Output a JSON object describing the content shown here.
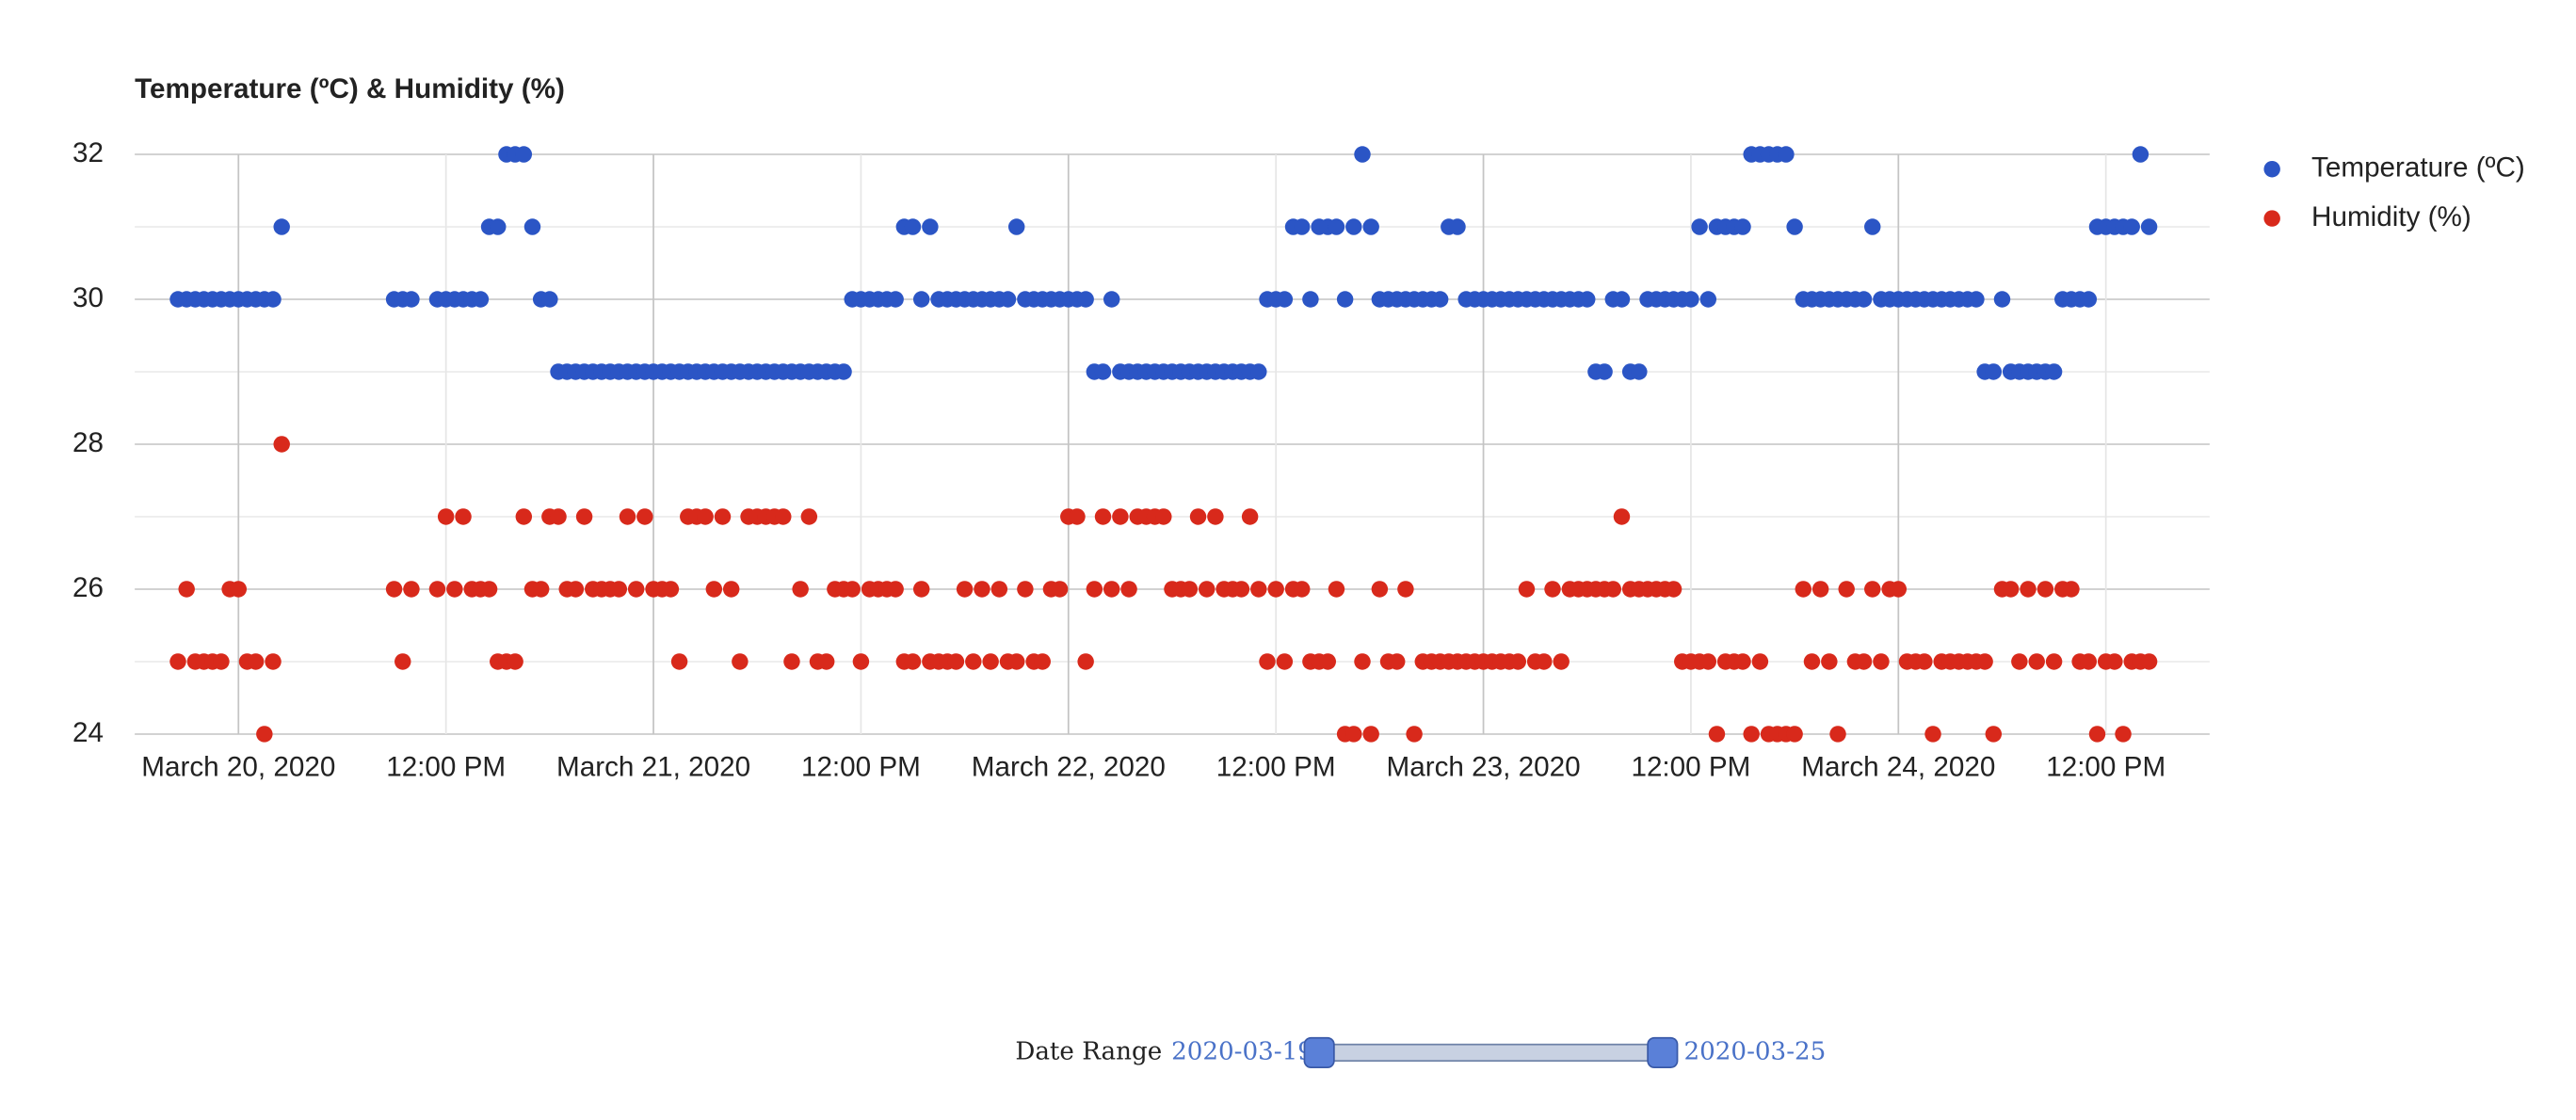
{
  "chart_data": {
    "type": "scatter",
    "title": "Temperature (ºC) & Humidity (%)",
    "xlim": [
      "2020-03-19 18:00",
      "2020-03-24 18:00"
    ],
    "xticks": [
      {
        "value": "2020-03-20 00:00",
        "label": "March 20, 2020"
      },
      {
        "value": "2020-03-20 12:00",
        "label": "12:00 PM"
      },
      {
        "value": "2020-03-21 00:00",
        "label": "March 21, 2020"
      },
      {
        "value": "2020-03-21 12:00",
        "label": "12:00 PM"
      },
      {
        "value": "2020-03-22 00:00",
        "label": "March 22, 2020"
      },
      {
        "value": "2020-03-22 12:00",
        "label": "12:00 PM"
      },
      {
        "value": "2020-03-23 00:00",
        "label": "March 23, 2020"
      },
      {
        "value": "2020-03-23 12:00",
        "label": "12:00 PM"
      },
      {
        "value": "2020-03-24 00:00",
        "label": "March 24, 2020"
      },
      {
        "value": "2020-03-24 12:00",
        "label": "12:00 PM"
      }
    ],
    "ylim": [
      24,
      32
    ],
    "yticks": [
      24,
      26,
      28,
      30,
      32
    ],
    "grid": true,
    "legend": "right",
    "x": [
      "2020-03-19 20:30",
      "2020-03-19 21:00",
      "2020-03-19 21:30",
      "2020-03-19 22:00",
      "2020-03-19 22:30",
      "2020-03-19 23:00",
      "2020-03-19 23:30",
      "2020-03-20 00:00",
      "2020-03-20 00:30",
      "2020-03-20 01:00",
      "2020-03-20 01:30",
      "2020-03-20 02:00",
      "2020-03-20 02:30",
      "2020-03-20 09:00",
      "2020-03-20 09:30",
      "2020-03-20 10:00",
      "2020-03-20 11:30",
      "2020-03-20 12:00",
      "2020-03-20 12:30",
      "2020-03-20 13:00",
      "2020-03-20 13:30",
      "2020-03-20 14:00",
      "2020-03-20 14:30",
      "2020-03-20 15:00",
      "2020-03-20 15:30",
      "2020-03-20 16:00",
      "2020-03-20 16:30",
      "2020-03-20 17:00",
      "2020-03-20 17:30",
      "2020-03-20 18:00",
      "2020-03-20 18:30",
      "2020-03-20 19:00",
      "2020-03-20 19:30",
      "2020-03-20 20:00",
      "2020-03-20 20:30",
      "2020-03-20 21:00",
      "2020-03-20 21:30",
      "2020-03-20 22:00",
      "2020-03-20 22:30",
      "2020-03-20 23:00",
      "2020-03-20 23:30",
      "2020-03-21 00:00",
      "2020-03-21 00:30",
      "2020-03-21 01:00",
      "2020-03-21 01:30",
      "2020-03-21 02:00",
      "2020-03-21 02:30",
      "2020-03-21 03:00",
      "2020-03-21 03:30",
      "2020-03-21 04:00",
      "2020-03-21 04:30",
      "2020-03-21 05:00",
      "2020-03-21 05:30",
      "2020-03-21 06:00",
      "2020-03-21 06:30",
      "2020-03-21 07:00",
      "2020-03-21 07:30",
      "2020-03-21 08:00",
      "2020-03-21 08:30",
      "2020-03-21 09:00",
      "2020-03-21 09:30",
      "2020-03-21 10:00",
      "2020-03-21 10:30",
      "2020-03-21 11:00",
      "2020-03-21 11:30",
      "2020-03-21 12:00",
      "2020-03-21 12:30",
      "2020-03-21 13:00",
      "2020-03-21 13:30",
      "2020-03-21 14:00",
      "2020-03-21 14:30",
      "2020-03-21 15:00",
      "2020-03-21 15:30",
      "2020-03-21 16:00",
      "2020-03-21 16:30",
      "2020-03-21 17:00",
      "2020-03-21 17:30",
      "2020-03-21 18:00",
      "2020-03-21 18:30",
      "2020-03-21 19:00",
      "2020-03-21 19:30",
      "2020-03-21 20:00",
      "2020-03-21 20:30",
      "2020-03-21 21:00",
      "2020-03-21 21:30",
      "2020-03-21 22:00",
      "2020-03-21 22:30",
      "2020-03-21 23:00",
      "2020-03-21 23:30",
      "2020-03-22 00:00",
      "2020-03-22 00:30",
      "2020-03-22 01:00",
      "2020-03-22 01:30",
      "2020-03-22 02:00",
      "2020-03-22 02:30",
      "2020-03-22 03:00",
      "2020-03-22 03:30",
      "2020-03-22 04:00",
      "2020-03-22 04:30",
      "2020-03-22 05:00",
      "2020-03-22 05:30",
      "2020-03-22 06:00",
      "2020-03-22 06:30",
      "2020-03-22 07:00",
      "2020-03-22 07:30",
      "2020-03-22 08:00",
      "2020-03-22 08:30",
      "2020-03-22 09:00",
      "2020-03-22 09:30",
      "2020-03-22 10:00",
      "2020-03-22 10:30",
      "2020-03-22 11:00",
      "2020-03-22 11:30",
      "2020-03-22 12:00",
      "2020-03-22 12:30",
      "2020-03-22 13:00",
      "2020-03-22 13:30",
      "2020-03-22 14:00",
      "2020-03-22 14:30",
      "2020-03-22 15:00",
      "2020-03-22 15:30",
      "2020-03-22 16:00",
      "2020-03-22 16:30",
      "2020-03-22 17:00",
      "2020-03-22 17:30",
      "2020-03-22 18:00",
      "2020-03-22 18:30",
      "2020-03-22 19:00",
      "2020-03-22 19:30",
      "2020-03-22 20:00",
      "2020-03-22 20:30",
      "2020-03-22 21:00",
      "2020-03-22 21:30",
      "2020-03-22 22:00",
      "2020-03-22 22:30",
      "2020-03-22 23:00",
      "2020-03-22 23:30",
      "2020-03-23 00:00",
      "2020-03-23 00:30",
      "2020-03-23 01:00",
      "2020-03-23 01:30",
      "2020-03-23 02:00",
      "2020-03-23 02:30",
      "2020-03-23 03:00",
      "2020-03-23 03:30",
      "2020-03-23 04:00",
      "2020-03-23 04:30",
      "2020-03-23 05:00",
      "2020-03-23 05:30",
      "2020-03-23 06:00",
      "2020-03-23 06:30",
      "2020-03-23 07:00",
      "2020-03-23 07:30",
      "2020-03-23 08:00",
      "2020-03-23 08:30",
      "2020-03-23 09:00",
      "2020-03-23 09:30",
      "2020-03-23 10:00",
      "2020-03-23 10:30",
      "2020-03-23 11:00",
      "2020-03-23 11:30",
      "2020-03-23 12:00",
      "2020-03-23 12:30",
      "2020-03-23 13:00",
      "2020-03-23 13:30",
      "2020-03-23 14:00",
      "2020-03-23 14:30",
      "2020-03-23 15:00",
      "2020-03-23 15:30",
      "2020-03-23 16:00",
      "2020-03-23 16:30",
      "2020-03-23 17:00",
      "2020-03-23 17:30",
      "2020-03-23 18:00",
      "2020-03-23 18:30",
      "2020-03-23 19:00",
      "2020-03-23 19:30",
      "2020-03-23 20:00",
      "2020-03-23 20:30",
      "2020-03-23 21:00",
      "2020-03-23 21:30",
      "2020-03-23 22:00",
      "2020-03-23 22:30",
      "2020-03-23 23:00",
      "2020-03-23 23:30",
      "2020-03-24 00:00",
      "2020-03-24 00:30",
      "2020-03-24 01:00",
      "2020-03-24 01:30",
      "2020-03-24 02:00",
      "2020-03-24 02:30",
      "2020-03-24 03:00",
      "2020-03-24 03:30",
      "2020-03-24 04:00",
      "2020-03-24 04:30",
      "2020-03-24 05:00",
      "2020-03-24 05:30",
      "2020-03-24 06:00",
      "2020-03-24 06:30",
      "2020-03-24 07:00",
      "2020-03-24 07:30",
      "2020-03-24 08:00",
      "2020-03-24 08:30",
      "2020-03-24 09:00",
      "2020-03-24 09:30",
      "2020-03-24 10:00",
      "2020-03-24 10:30",
      "2020-03-24 11:00",
      "2020-03-24 11:30",
      "2020-03-24 12:00",
      "2020-03-24 12:30",
      "2020-03-24 13:00",
      "2020-03-24 13:30",
      "2020-03-24 14:00",
      "2020-03-24 14:30"
    ],
    "series": [
      {
        "name": "Temperature (ºC)",
        "color": "#2b55c5",
        "values": [
          30,
          30,
          30,
          30,
          30,
          30,
          30,
          30,
          30,
          30,
          30,
          30,
          31,
          30,
          30,
          30,
          30,
          30,
          30,
          30,
          30,
          30,
          31,
          31,
          32,
          32,
          32,
          31,
          30,
          30,
          29,
          29,
          29,
          29,
          29,
          29,
          29,
          29,
          29,
          29,
          29,
          29,
          29,
          29,
          29,
          29,
          29,
          29,
          29,
          29,
          29,
          29,
          29,
          29,
          29,
          29,
          29,
          29,
          29,
          29,
          29,
          29,
          29,
          29,
          30,
          30,
          30,
          30,
          30,
          30,
          31,
          31,
          30,
          31,
          30,
          30,
          30,
          30,
          30,
          30,
          30,
          30,
          30,
          31,
          30,
          30,
          30,
          30,
          30,
          30,
          30,
          30,
          29,
          29,
          30,
          29,
          29,
          29,
          29,
          29,
          29,
          29,
          29,
          29,
          29,
          29,
          29,
          29,
          29,
          29,
          29,
          29,
          30,
          30,
          30,
          31,
          31,
          30,
          31,
          31,
          31,
          30,
          31,
          32,
          31,
          30,
          30,
          30,
          30,
          30,
          30,
          30,
          30,
          31,
          31,
          30,
          30,
          30,
          30,
          30,
          30,
          30,
          30,
          30,
          30,
          30,
          30,
          30,
          30,
          30,
          29,
          29,
          30,
          30,
          29,
          29,
          30,
          30,
          30,
          30,
          30,
          30,
          31,
          30,
          31,
          31,
          31,
          31,
          32,
          32,
          32,
          32,
          32,
          31,
          30,
          30,
          30,
          30,
          30,
          30,
          30,
          30,
          31,
          30,
          30,
          30,
          30,
          30,
          30,
          30,
          30,
          30,
          30,
          30,
          30,
          29,
          29,
          30,
          29,
          29,
          29,
          29,
          29,
          29,
          30,
          30,
          30,
          30,
          31,
          31,
          31,
          31,
          31,
          32,
          31
        ]
      },
      {
        "name": "Humidity (%)",
        "color": "#d8291b",
        "values": [
          25,
          26,
          25,
          25,
          25,
          25,
          26,
          26,
          25,
          25,
          24,
          25,
          28,
          26,
          25,
          26,
          26,
          27,
          26,
          27,
          26,
          26,
          26,
          25,
          25,
          25,
          27,
          26,
          26,
          27,
          27,
          26,
          26,
          27,
          26,
          26,
          26,
          26,
          27,
          26,
          27,
          26,
          26,
          26,
          25,
          27,
          27,
          27,
          26,
          27,
          26,
          25,
          27,
          27,
          27,
          27,
          27,
          25,
          26,
          27,
          25,
          25,
          26,
          26,
          26,
          25,
          26,
          26,
          26,
          26,
          25,
          25,
          26,
          25,
          25,
          25,
          25,
          26,
          25,
          26,
          25,
          26,
          25,
          25,
          26,
          25,
          25,
          26,
          26,
          27,
          27,
          25,
          26,
          27,
          26,
          27,
          26,
          27,
          27,
          27,
          27,
          26,
          26,
          26,
          27,
          26,
          27,
          26,
          26,
          26,
          27,
          26,
          25,
          26,
          25,
          26,
          26,
          25,
          25,
          25,
          26,
          24,
          24,
          25,
          24,
          26,
          25,
          25,
          26,
          24,
          25,
          25,
          25,
          25,
          25,
          25,
          25,
          25,
          25,
          25,
          25,
          25,
          26,
          25,
          25,
          26,
          25,
          26,
          26,
          26,
          26,
          26,
          26,
          27,
          26,
          26,
          26,
          26,
          26,
          26,
          25,
          25,
          25,
          25,
          24,
          25,
          25,
          25,
          24,
          25,
          24,
          24,
          24,
          24,
          26,
          25,
          26,
          25,
          24,
          26,
          25,
          25,
          26,
          25,
          26,
          26,
          25,
          25,
          25,
          24,
          25,
          25,
          25,
          25,
          25,
          25,
          24,
          26,
          26,
          25,
          26,
          25,
          26,
          25,
          26,
          26,
          25,
          25,
          24,
          25,
          25,
          24,
          25,
          25,
          25
        ]
      }
    ]
  },
  "date_range": {
    "label": "Date Range",
    "start": "2020-03-19",
    "end": "2020-03-25"
  }
}
